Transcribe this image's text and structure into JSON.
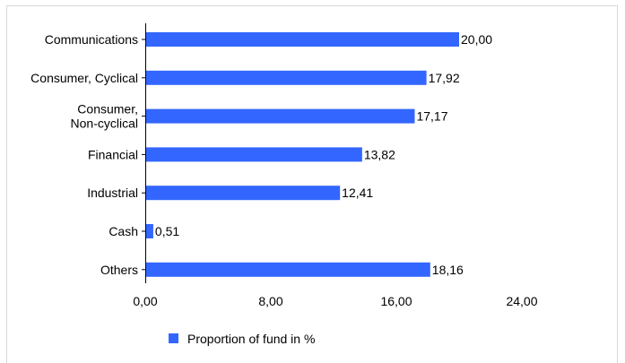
{
  "caption": "",
  "chart_data": {
    "type": "bar",
    "orientation": "horizontal",
    "categories": [
      [
        "Communications"
      ],
      [
        "Consumer, Cyclical"
      ],
      [
        "Consumer,",
        "Non-cyclical"
      ],
      [
        "Financial"
      ],
      [
        "Industrial"
      ],
      [
        "Cash"
      ],
      [
        "Others"
      ]
    ],
    "series": [
      {
        "name": "Proportion of fund in %",
        "values": [
          20.0,
          17.92,
          17.17,
          13.82,
          12.41,
          0.51,
          18.16
        ],
        "value_labels": [
          "20,00",
          "17,92",
          "17,17",
          "13,82",
          "12,41",
          "0,51",
          "18,16"
        ]
      }
    ],
    "xlim": [
      0,
      24
    ],
    "x_ticks": [
      0,
      8,
      16,
      24
    ],
    "x_tick_labels": [
      "0,00",
      "8,00",
      "16,00",
      "24,00"
    ],
    "grid": false,
    "legend": "bottom",
    "colors": {
      "bar": "#3366ff",
      "frame": "#d9d9d9",
      "axis": "#000000"
    }
  }
}
